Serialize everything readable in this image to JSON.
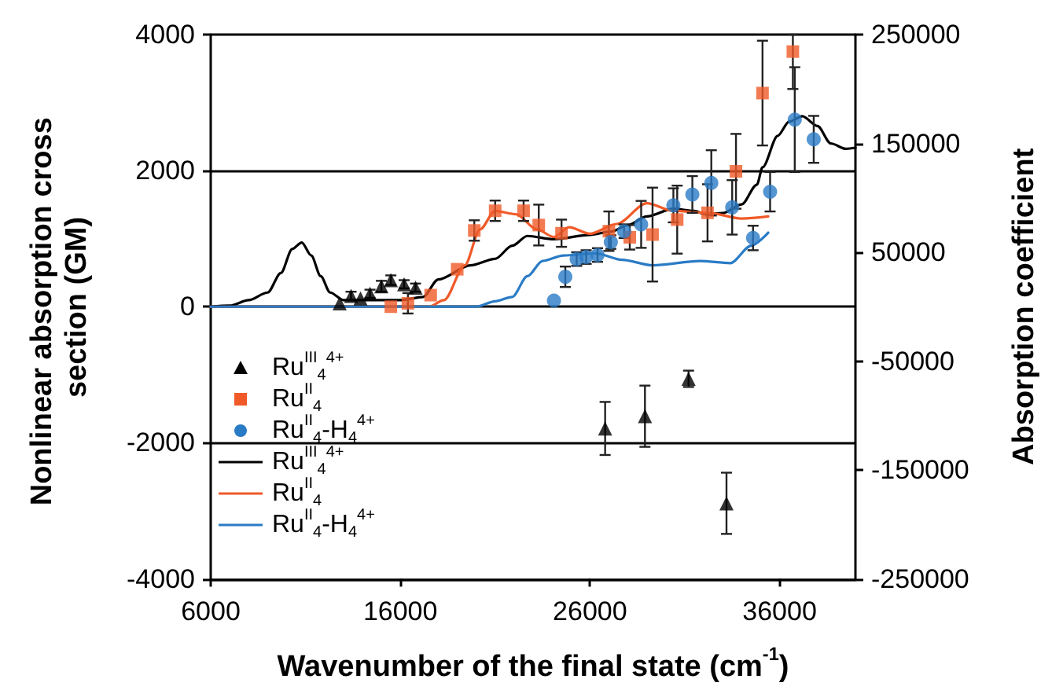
{
  "chart_data": {
    "type": "scatter",
    "xlabel": "Wavenumber of the final state (cm$^{-1}$)",
    "ylabel": "Nonlinear absorption cross section (GM)",
    "y2label": "Absorption coefficient",
    "xlim": [
      6000,
      40000
    ],
    "xticks": [
      6000,
      16000,
      26000,
      36000
    ],
    "ylim": [
      -4000,
      4000
    ],
    "yticks": [
      -4000,
      -2000,
      0,
      2000,
      4000
    ],
    "y2lim": [
      -250000,
      250000
    ],
    "y2ticks": [
      -250000,
      -150000,
      -50000,
      50000,
      150000,
      250000
    ],
    "grid": "y",
    "legend": "bottom left",
    "series": [
      {
        "name": "Ru$^{III}$$_{4}$$^{4+}$",
        "marker": "triangle",
        "color": "#000000",
        "x": [
          12800,
          13400,
          13900,
          14400,
          15000,
          15500,
          16200,
          16800,
          26800,
          28900,
          31200,
          33200
        ],
        "values": [
          50,
          160,
          120,
          190,
          300,
          390,
          330,
          280,
          -1790,
          -1610,
          -1060,
          -2890
        ],
        "errors": [
          null,
          60,
          null,
          60,
          80,
          70,
          60,
          60,
          390,
          450,
          120,
          450
        ]
      },
      {
        "name": "Ru$^{II}$$_{4}$",
        "marker": "square",
        "color": "#f05a28",
        "x": [
          15500,
          16400,
          17600,
          19000,
          19900,
          21000,
          22500,
          23300,
          24500,
          27000,
          28100,
          29300,
          30600,
          32200,
          33700,
          35100,
          36700
        ],
        "values": [
          0,
          50,
          170,
          550,
          1120,
          1410,
          1410,
          1200,
          1080,
          1110,
          1020,
          1060,
          1280,
          1380,
          1990,
          3140,
          3750
        ],
        "errors": [
          null,
          150,
          null,
          null,
          150,
          150,
          150,
          300,
          200,
          290,
          180,
          690,
          500,
          420,
          550,
          770,
          [
            3200,
            4000
          ]
        ]
      },
      {
        "name": "Ru$^{II}$$_{4}$-H$_{4}$$^{4+}$",
        "marker": "circle",
        "color": "#2a7bc6",
        "x": [
          24100,
          24700,
          25300,
          25800,
          26400,
          27100,
          27800,
          28700,
          30400,
          31400,
          32400,
          33500,
          34600,
          35500,
          36800,
          37800
        ],
        "values": [
          90,
          440,
          700,
          730,
          760,
          950,
          1110,
          1210,
          1490,
          1650,
          1820,
          1460,
          1010,
          1690,
          2750,
          2460
        ],
        "errors": [
          null,
          150,
          100,
          100,
          100,
          100,
          100,
          345,
          250,
          270,
          480,
          400,
          180,
          290,
          770,
          345
        ]
      },
      {
        "name": "Ru$^{III}$$_{4}$$^{4+}$",
        "type": "line",
        "axis": "y2",
        "marker": "none",
        "color": "#000000",
        "x": [
          6000,
          7000,
          8000,
          9000,
          9700,
          10300,
          10800,
          11300,
          11800,
          12300,
          13000,
          14000,
          15000,
          16000,
          17200,
          18000,
          19700,
          21000,
          21900,
          22700,
          24100,
          26000,
          27100,
          28000,
          29000,
          30400,
          31500,
          32100,
          33000,
          34000,
          34800,
          35100,
          35900,
          36500,
          37200,
          38000,
          38700,
          39500,
          40000
        ],
        "values": [
          0,
          1000,
          6000,
          13000,
          31000,
          53000,
          59000,
          47000,
          28000,
          13000,
          6000,
          6000,
          6000,
          6000,
          9000,
          25000,
          38000,
          44000,
          56000,
          65000,
          62000,
          66000,
          69000,
          75000,
          83000,
          90000,
          88000,
          85000,
          86000,
          94000,
          112000,
          128000,
          157000,
          170000,
          175000,
          166000,
          150000,
          145000,
          146000
        ]
      },
      {
        "name": "Ru$^{II}$$_{4}$",
        "type": "line",
        "axis": "y2",
        "marker": "none",
        "color": "#f05a28",
        "x": [
          6000,
          10000,
          15000,
          17500,
          18300,
          19400,
          20200,
          21000,
          22100,
          23200,
          24100,
          24900,
          26000,
          27400,
          29000,
          30400,
          32300,
          34000,
          35400
        ],
        "values": [
          0,
          0,
          0,
          0,
          6000,
          38000,
          71000,
          88000,
          85000,
          71000,
          64000,
          73000,
          67000,
          76000,
          95000,
          88000,
          86000,
          81000,
          83000
        ]
      },
      {
        "name": "Ru$^{II}$$_{4}$-H$_{4}$$^{4+}$",
        "type": "line",
        "axis": "y2",
        "marker": "none",
        "color": "#2a7bc6",
        "x": [
          6000,
          20000,
          21000,
          21900,
          22700,
          23500,
          24600,
          26300,
          27700,
          29300,
          31800,
          33400,
          34500,
          35400
        ],
        "values": [
          0,
          0,
          5000,
          9000,
          28000,
          42000,
          47000,
          49000,
          43000,
          38000,
          42000,
          40000,
          56000,
          68000
        ]
      }
    ]
  }
}
